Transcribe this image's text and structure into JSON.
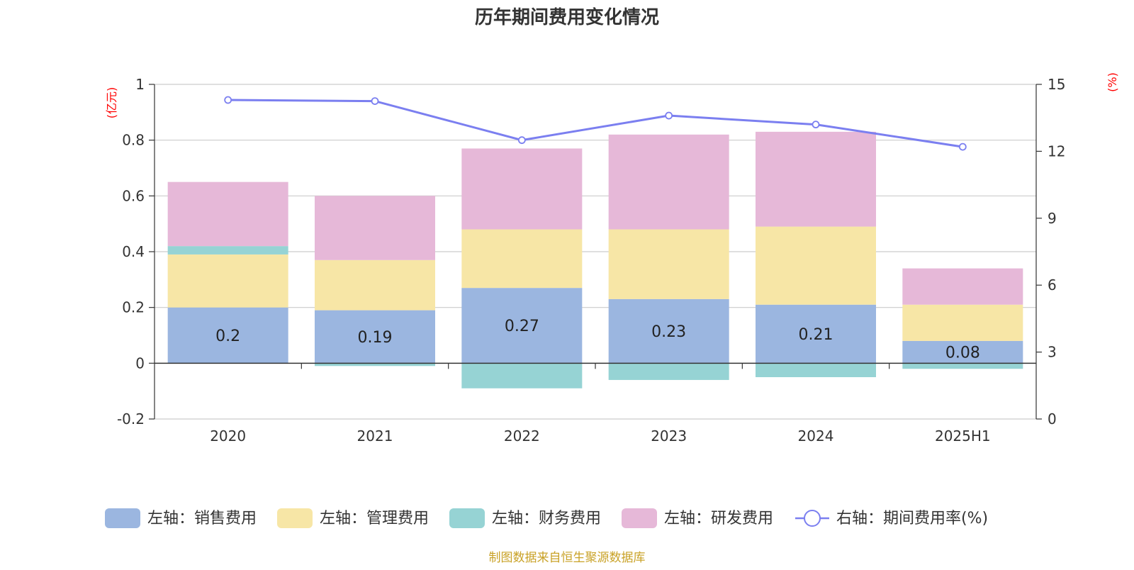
{
  "chart_data": {
    "type": "bar",
    "title": "历年期间费用变化情况",
    "categories": [
      "2020",
      "2021",
      "2022",
      "2023",
      "2024",
      "2025H1"
    ],
    "y_left": {
      "unit": "(亿元)",
      "ylim": [
        -0.2,
        1
      ],
      "ticks": [
        -0.2,
        0,
        0.2,
        0.4,
        0.6,
        0.8,
        1
      ]
    },
    "y_right": {
      "unit": "(%)",
      "ylim": [
        0,
        15
      ],
      "ticks": [
        0,
        3,
        6,
        9,
        12,
        15
      ]
    },
    "series": [
      {
        "name": "左轴：销售费用",
        "color": "#9bb6e0",
        "values": [
          0.2,
          0.19,
          0.27,
          0.23,
          0.21,
          0.08
        ]
      },
      {
        "name": "左轴：管理费用",
        "color": "#f7e6a6",
        "values": [
          0.19,
          0.18,
          0.21,
          0.25,
          0.28,
          0.13
        ]
      },
      {
        "name": "左轴：财务费用",
        "color": "#96d3d4",
        "values": [
          0.03,
          -0.01,
          -0.09,
          -0.06,
          -0.05,
          -0.02
        ]
      },
      {
        "name": "左轴：研发费用",
        "color": "#e6b8d8",
        "values": [
          0.23,
          0.23,
          0.29,
          0.34,
          0.34,
          0.13
        ]
      }
    ],
    "line_series": {
      "name": "右轴：期间费用率(%)",
      "color": "#7b7ff0",
      "axis": "right",
      "values": [
        14.3,
        14.25,
        12.5,
        13.6,
        13.2,
        12.2
      ]
    },
    "data_labels": [
      "0.2",
      "0.19",
      "0.27",
      "0.23",
      "0.21",
      "0.08"
    ],
    "grid": true,
    "legend_position": "bottom"
  },
  "source_note": "制图数据来自恒生聚源数据库"
}
